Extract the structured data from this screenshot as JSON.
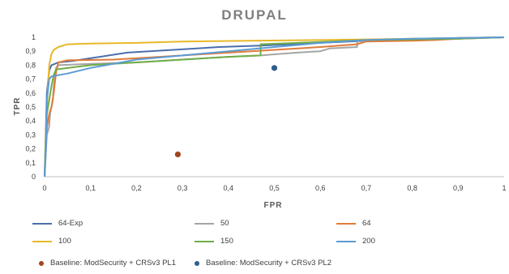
{
  "chart_data": {
    "type": "line",
    "title": "DRUPAL",
    "xlabel": "FPR",
    "ylabel": "TPR",
    "xlim": [
      0,
      1
    ],
    "ylim": [
      0,
      1
    ],
    "xticks": [
      "0",
      "0,1",
      "0,2",
      "0,3",
      "0,4",
      "0,5",
      "0,6",
      "0,7",
      "0,8",
      "0,9",
      "1"
    ],
    "yticks": [
      "0",
      "0,1",
      "0,2",
      "0,3",
      "0,4",
      "0,5",
      "0,6",
      "0,7",
      "0,8",
      "0,9",
      "1"
    ],
    "grid": false,
    "legend_placement": "bottom",
    "series": [
      {
        "name": "64-Exp",
        "color": "#4a6fad",
        "points": [
          [
            0,
            0
          ],
          [
            0.005,
            0.6
          ],
          [
            0.01,
            0.76
          ],
          [
            0.015,
            0.8
          ],
          [
            0.03,
            0.82
          ],
          [
            0.06,
            0.83
          ],
          [
            0.12,
            0.86
          ],
          [
            0.18,
            0.89
          ],
          [
            0.28,
            0.91
          ],
          [
            0.38,
            0.93
          ],
          [
            0.47,
            0.94
          ],
          [
            0.6,
            0.96
          ],
          [
            0.7,
            0.975
          ],
          [
            0.8,
            0.985
          ],
          [
            0.9,
            0.995
          ],
          [
            1,
            1
          ]
        ]
      },
      {
        "name": "50",
        "color": "#a5a5a5",
        "points": [
          [
            0,
            0
          ],
          [
            0.005,
            0.3
          ],
          [
            0.01,
            0.36
          ],
          [
            0.012,
            0.45
          ],
          [
            0.018,
            0.55
          ],
          [
            0.02,
            0.65
          ],
          [
            0.025,
            0.78
          ],
          [
            0.03,
            0.8
          ],
          [
            0.1,
            0.81
          ],
          [
            0.2,
            0.82
          ],
          [
            0.3,
            0.84
          ],
          [
            0.4,
            0.86
          ],
          [
            0.47,
            0.87
          ],
          [
            0.55,
            0.89
          ],
          [
            0.6,
            0.9
          ],
          [
            0.62,
            0.92
          ],
          [
            0.68,
            0.93
          ],
          [
            0.68,
            0.97
          ],
          [
            0.8,
            0.98
          ],
          [
            0.9,
            0.99
          ],
          [
            1,
            1
          ]
        ]
      },
      {
        "name": "64",
        "color": "#e07b39",
        "points": [
          [
            0,
            0
          ],
          [
            0.005,
            0.35
          ],
          [
            0.01,
            0.45
          ],
          [
            0.015,
            0.5
          ],
          [
            0.02,
            0.6
          ],
          [
            0.025,
            0.75
          ],
          [
            0.03,
            0.82
          ],
          [
            0.05,
            0.835
          ],
          [
            0.15,
            0.84
          ],
          [
            0.25,
            0.86
          ],
          [
            0.35,
            0.88
          ],
          [
            0.45,
            0.9
          ],
          [
            0.5,
            0.91
          ],
          [
            0.6,
            0.93
          ],
          [
            0.68,
            0.95
          ],
          [
            0.7,
            0.97
          ],
          [
            0.8,
            0.975
          ],
          [
            0.85,
            0.98
          ],
          [
            0.9,
            0.99
          ],
          [
            1,
            1
          ]
        ]
      },
      {
        "name": "100",
        "color": "#e8b829",
        "points": [
          [
            0,
            0
          ],
          [
            0.005,
            0.5
          ],
          [
            0.01,
            0.8
          ],
          [
            0.015,
            0.88
          ],
          [
            0.02,
            0.91
          ],
          [
            0.03,
            0.93
          ],
          [
            0.05,
            0.95
          ],
          [
            0.1,
            0.955
          ],
          [
            0.2,
            0.96
          ],
          [
            0.3,
            0.97
          ],
          [
            0.45,
            0.975
          ],
          [
            0.6,
            0.98
          ],
          [
            0.7,
            0.985
          ],
          [
            0.8,
            0.99
          ],
          [
            0.9,
            0.995
          ],
          [
            1,
            1
          ]
        ]
      },
      {
        "name": "150",
        "color": "#70ad47",
        "points": [
          [
            0,
            0
          ],
          [
            0.005,
            0.45
          ],
          [
            0.01,
            0.55
          ],
          [
            0.015,
            0.65
          ],
          [
            0.02,
            0.73
          ],
          [
            0.025,
            0.77
          ],
          [
            0.1,
            0.8
          ],
          [
            0.2,
            0.82
          ],
          [
            0.3,
            0.84
          ],
          [
            0.4,
            0.86
          ],
          [
            0.47,
            0.87
          ],
          [
            0.47,
            0.95
          ],
          [
            0.55,
            0.96
          ],
          [
            0.7,
            0.98
          ],
          [
            0.8,
            0.985
          ],
          [
            0.9,
            0.99
          ],
          [
            1,
            1
          ]
        ]
      },
      {
        "name": "200",
        "color": "#5b9bd5",
        "points": [
          [
            0,
            0
          ],
          [
            0.003,
            0.2
          ],
          [
            0.005,
            0.55
          ],
          [
            0.01,
            0.7
          ],
          [
            0.015,
            0.72
          ],
          [
            0.05,
            0.74
          ],
          [
            0.1,
            0.78
          ],
          [
            0.15,
            0.81
          ],
          [
            0.2,
            0.84
          ],
          [
            0.3,
            0.87
          ],
          [
            0.4,
            0.9
          ],
          [
            0.5,
            0.93
          ],
          [
            0.6,
            0.96
          ],
          [
            0.7,
            0.98
          ],
          [
            0.8,
            0.99
          ],
          [
            0.9,
            0.995
          ],
          [
            1,
            1
          ]
        ]
      }
    ],
    "baselines": [
      {
        "name": "Baseline: ModSecurity + CRSv3 PL1",
        "color": "#a0461e",
        "x": 0.29,
        "y": 0.16
      },
      {
        "name": "Baseline: ModSecurity + CRSv3 PL2",
        "color": "#2e5f8a",
        "x": 0.5,
        "y": 0.78
      }
    ]
  }
}
